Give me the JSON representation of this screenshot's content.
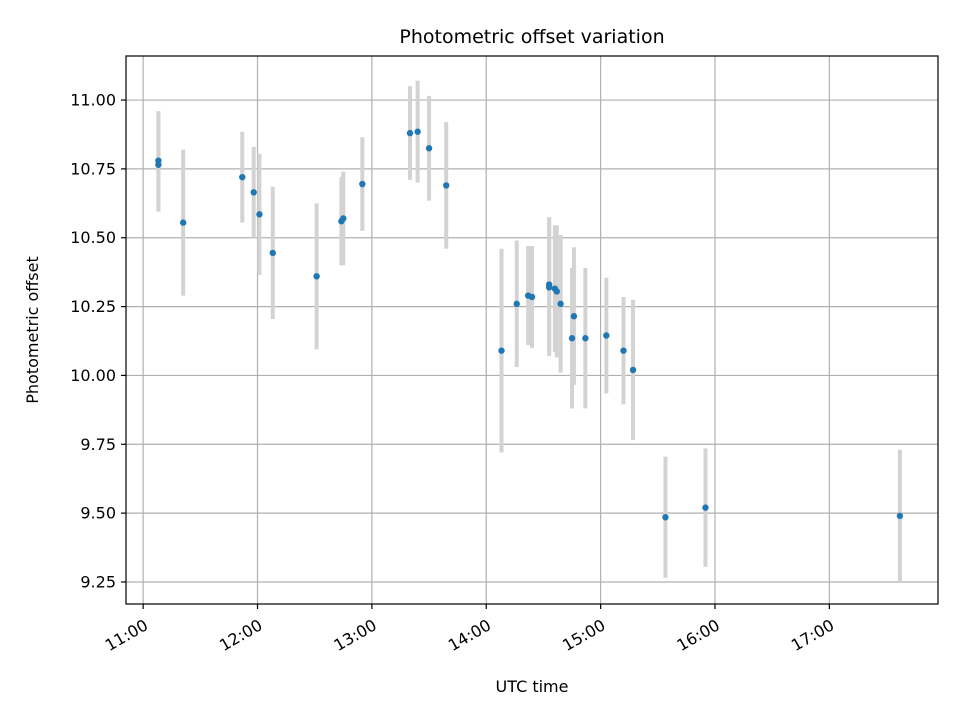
{
  "chart_data": {
    "type": "scatter",
    "title": "Photometric offset variation",
    "xlabel": "UTC time",
    "ylabel": "Photometric offset",
    "xlim": [
      "10:51",
      "17:57"
    ],
    "ylim": [
      9.17,
      11.16
    ],
    "x_ticks": [
      "11:00",
      "12:00",
      "13:00",
      "14:00",
      "15:00",
      "16:00",
      "17:00"
    ],
    "y_ticks": [
      "9.25",
      "9.50",
      "9.75",
      "10.00",
      "10.25",
      "10.50",
      "10.75",
      "11.00"
    ],
    "grid": true,
    "colors": {
      "marker": "#1f77b4",
      "errorbar": "#d3d3d3",
      "grid": "#b0b0b0"
    },
    "points": [
      {
        "x": "11:08",
        "y": 10.78,
        "err": 0.18
      },
      {
        "x": "11:08",
        "y": 10.765,
        "err": 0.17
      },
      {
        "x": "11:21",
        "y": 10.555,
        "err": 0.265
      },
      {
        "x": "11:52",
        "y": 10.72,
        "err": 0.165
      },
      {
        "x": "11:58",
        "y": 10.665,
        "err": 0.165
      },
      {
        "x": "12:01",
        "y": 10.585,
        "err": 0.22
      },
      {
        "x": "12:08",
        "y": 10.445,
        "err": 0.24
      },
      {
        "x": "12:31",
        "y": 10.36,
        "err": 0.265
      },
      {
        "x": "12:44",
        "y": 10.56,
        "err": 0.16
      },
      {
        "x": "12:45",
        "y": 10.57,
        "err": 0.17
      },
      {
        "x": "12:55",
        "y": 10.695,
        "err": 0.17
      },
      {
        "x": "13:20",
        "y": 10.88,
        "err": 0.17
      },
      {
        "x": "13:24",
        "y": 10.885,
        "err": 0.185
      },
      {
        "x": "13:30",
        "y": 10.825,
        "err": 0.19
      },
      {
        "x": "13:39",
        "y": 10.69,
        "err": 0.23
      },
      {
        "x": "14:08",
        "y": 10.09,
        "err": 0.37
      },
      {
        "x": "14:16",
        "y": 10.26,
        "err": 0.23
      },
      {
        "x": "14:22",
        "y": 10.29,
        "err": 0.18
      },
      {
        "x": "14:24",
        "y": 10.285,
        "err": 0.185
      },
      {
        "x": "14:33",
        "y": 10.33,
        "err": 0.245
      },
      {
        "x": "14:33",
        "y": 10.32,
        "err": 0.25
      },
      {
        "x": "14:36",
        "y": 10.315,
        "err": 0.23
      },
      {
        "x": "14:37",
        "y": 10.305,
        "err": 0.24
      },
      {
        "x": "14:39",
        "y": 10.26,
        "err": 0.25
      },
      {
        "x": "14:45",
        "y": 10.135,
        "err": 0.255
      },
      {
        "x": "14:46",
        "y": 10.215,
        "err": 0.25
      },
      {
        "x": "14:52",
        "y": 10.135,
        "err": 0.255
      },
      {
        "x": "15:03",
        "y": 10.145,
        "err": 0.21
      },
      {
        "x": "15:12",
        "y": 10.09,
        "err": 0.195
      },
      {
        "x": "15:17",
        "y": 10.02,
        "err": 0.255
      },
      {
        "x": "15:34",
        "y": 9.485,
        "err": 0.22
      },
      {
        "x": "15:55",
        "y": 9.52,
        "err": 0.215
      },
      {
        "x": "17:37",
        "y": 9.49,
        "err": 0.24
      }
    ]
  }
}
